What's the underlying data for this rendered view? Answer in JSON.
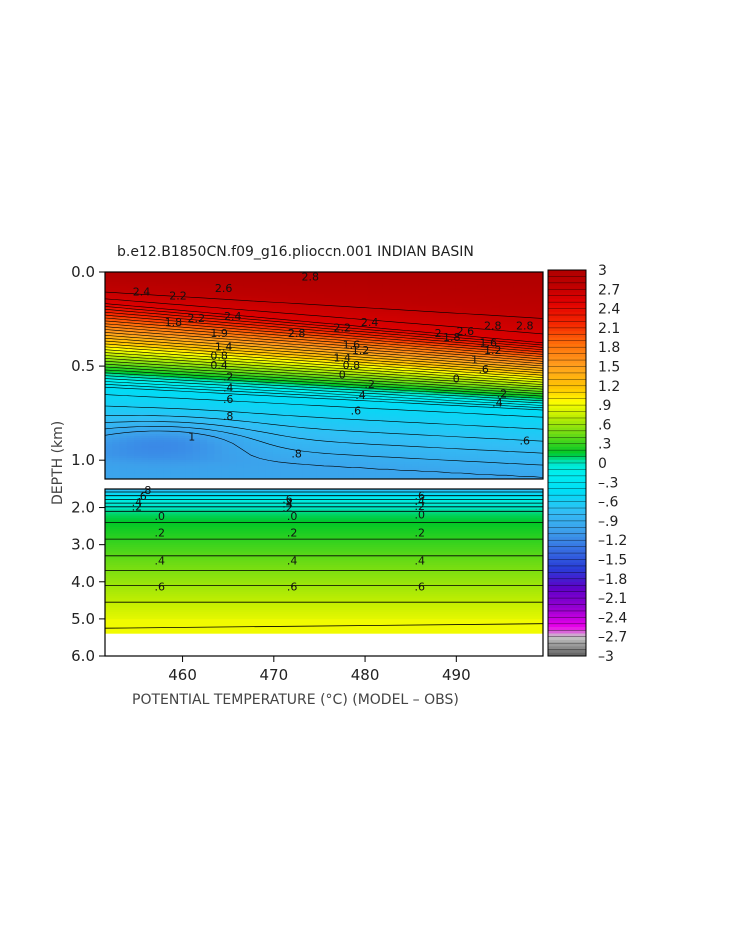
{
  "chart_data": {
    "type": "heatmap",
    "title": "b.e12.B1850CN.f09_g16.plioccn.001 INDIAN BASIN",
    "xlabel": "POTENTIAL TEMPERATURE (°C) (MODEL – OBS)",
    "ylabel": "DEPTH (km)",
    "x_ticks": [
      "460",
      "470",
      "480",
      "490"
    ],
    "x_tick_values": [
      460,
      470,
      480,
      490
    ],
    "xlim": [
      451.5,
      499.5
    ],
    "upper_panel": {
      "ylim": [
        0.0,
        1.1
      ],
      "y_ticks": [
        "0.0",
        "0.5",
        "1.0"
      ],
      "y_tick_values": [
        0.0,
        0.5,
        1.0
      ]
    },
    "lower_panel": {
      "ylim": [
        1.5,
        6.0
      ],
      "y_ticks": [
        "2.0",
        "3.0",
        "4.0",
        "5.0",
        "6.0"
      ],
      "y_tick_values": [
        2.0,
        3.0,
        4.0,
        5.0,
        6.0
      ],
      "data_bottom_depth": 5.4
    },
    "colorbar": {
      "range": [
        -3,
        3
      ],
      "labels": [
        "3",
        "2.7",
        "2.4",
        "2.1",
        "1.8",
        "1.5",
        "1.2",
        ".9",
        ".6",
        ".3",
        "0",
        "–.3",
        "–.6",
        "–.9",
        "–1.2",
        "–1.5",
        "–1.8",
        "–2.1",
        "–2.4",
        "–2.7",
        "–3"
      ]
    },
    "contour_labels_upper": [
      {
        "x": 455.5,
        "d": 0.11,
        "text": "2.4"
      },
      {
        "x": 459.5,
        "d": 0.13,
        "text": "2.2"
      },
      {
        "x": 464.5,
        "d": 0.09,
        "text": "2.6"
      },
      {
        "x": 461.5,
        "d": 0.25,
        "text": "2.2"
      },
      {
        "x": 465.5,
        "d": 0.24,
        "text": "2.4"
      },
      {
        "x": 459.0,
        "d": 0.27,
        "text": "1.8"
      },
      {
        "x": 464.0,
        "d": 0.33,
        "text": "1.9"
      },
      {
        "x": 464.5,
        "d": 0.4,
        "text": "1.4"
      },
      {
        "x": 464.0,
        "d": 0.45,
        "text": "0.8"
      },
      {
        "x": 464.0,
        "d": 0.5,
        "text": "0.4"
      },
      {
        "x": 465.0,
        "d": 0.56,
        "text": ".2"
      },
      {
        "x": 465.0,
        "d": 0.62,
        "text": ".4"
      },
      {
        "x": 465.0,
        "d": 0.68,
        "text": ".6"
      },
      {
        "x": 465.0,
        "d": 0.77,
        "text": ".8"
      },
      {
        "x": 461.0,
        "d": 0.88,
        "text": "1"
      },
      {
        "x": 474.0,
        "d": 0.03,
        "text": "2.8"
      },
      {
        "x": 472.5,
        "d": 0.33,
        "text": "2.8"
      },
      {
        "x": 477.5,
        "d": 0.3,
        "text": "2.2"
      },
      {
        "x": 480.5,
        "d": 0.27,
        "text": "2.4"
      },
      {
        "x": 478.5,
        "d": 0.39,
        "text": "1.6"
      },
      {
        "x": 479.5,
        "d": 0.42,
        "text": "1.2"
      },
      {
        "x": 477.5,
        "d": 0.46,
        "text": "1.4"
      },
      {
        "x": 478.5,
        "d": 0.5,
        "text": "0.8"
      },
      {
        "x": 477.5,
        "d": 0.55,
        "text": "0"
      },
      {
        "x": 480.5,
        "d": 0.6,
        "text": ".2"
      },
      {
        "x": 479.5,
        "d": 0.66,
        "text": ".4"
      },
      {
        "x": 479.0,
        "d": 0.74,
        "text": ".6"
      },
      {
        "x": 472.5,
        "d": 0.97,
        "text": ".8"
      },
      {
        "x": 488.0,
        "d": 0.33,
        "text": "2"
      },
      {
        "x": 489.5,
        "d": 0.35,
        "text": "1.8"
      },
      {
        "x": 491.0,
        "d": 0.32,
        "text": "2.6"
      },
      {
        "x": 494.0,
        "d": 0.29,
        "text": "2.8"
      },
      {
        "x": 497.5,
        "d": 0.29,
        "text": "2.8"
      },
      {
        "x": 493.5,
        "d": 0.38,
        "text": "1.6"
      },
      {
        "x": 494.0,
        "d": 0.42,
        "text": "1.2"
      },
      {
        "x": 492.0,
        "d": 0.47,
        "text": "1"
      },
      {
        "x": 493.0,
        "d": 0.52,
        "text": ".6"
      },
      {
        "x": 490.0,
        "d": 0.57,
        "text": "0"
      },
      {
        "x": 495.0,
        "d": 0.65,
        "text": ".2"
      },
      {
        "x": 494.5,
        "d": 0.7,
        "text": ".4"
      },
      {
        "x": 497.5,
        "d": 0.9,
        "text": ".6"
      }
    ],
    "contour_labels_lower": [
      {
        "x": 456.0,
        "d": 1.55,
        "text": ".8"
      },
      {
        "x": 455.5,
        "d": 1.72,
        "text": ".6"
      },
      {
        "x": 455.0,
        "d": 1.88,
        "text": ".4"
      },
      {
        "x": 455.0,
        "d": 2.0,
        "text": ".2"
      },
      {
        "x": 457.5,
        "d": 2.25,
        "text": ".0"
      },
      {
        "x": 457.5,
        "d": 2.7,
        "text": ".2"
      },
      {
        "x": 457.5,
        "d": 3.45,
        "text": ".4"
      },
      {
        "x": 457.5,
        "d": 4.15,
        "text": ".6"
      },
      {
        "x": 471.5,
        "d": 1.8,
        "text": ".6"
      },
      {
        "x": 471.5,
        "d": 1.92,
        "text": ".4"
      },
      {
        "x": 471.5,
        "d": 2.02,
        "text": ".2"
      },
      {
        "x": 472.0,
        "d": 2.25,
        "text": ".0"
      },
      {
        "x": 472.0,
        "d": 2.7,
        "text": ".2"
      },
      {
        "x": 472.0,
        "d": 3.45,
        "text": ".4"
      },
      {
        "x": 472.0,
        "d": 4.15,
        "text": ".6"
      },
      {
        "x": 486.0,
        "d": 1.7,
        "text": ".6"
      },
      {
        "x": 486.0,
        "d": 1.85,
        "text": ".4"
      },
      {
        "x": 486.0,
        "d": 1.98,
        "text": ".2"
      },
      {
        "x": 486.0,
        "d": 2.22,
        "text": ".0"
      },
      {
        "x": 486.0,
        "d": 2.7,
        "text": ".2"
      },
      {
        "x": 486.0,
        "d": 3.45,
        "text": ".4"
      },
      {
        "x": 486.0,
        "d": 4.15,
        "text": ".6"
      }
    ]
  }
}
